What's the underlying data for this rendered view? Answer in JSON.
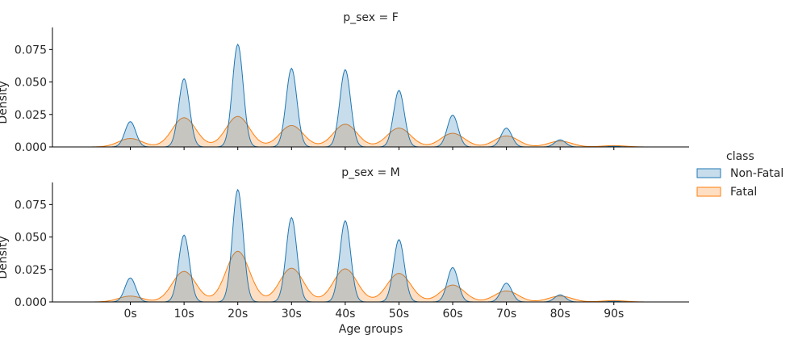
{
  "chart_data": {
    "type": "area",
    "subtype": "kde",
    "facet_titles": [
      "p_sex = F",
      "p_sex = M"
    ],
    "xlabel": "Age groups",
    "ylabel": "Density",
    "categories": [
      "0s",
      "10s",
      "20s",
      "30s",
      "40s",
      "50s",
      "60s",
      "70s",
      "80s",
      "90s"
    ],
    "xlim": [
      -1.45,
      10.4
    ],
    "ylim": [
      0,
      0.092
    ],
    "yticks": [
      "0.000",
      "0.025",
      "0.050",
      "0.075"
    ],
    "ytick_values": [
      0,
      0.025,
      0.05,
      0.075
    ],
    "legend": {
      "title": "class",
      "position": "right"
    },
    "colors": {
      "Non-Fatal": "#1f77b4",
      "Fatal": "#ff7f0e"
    },
    "panels": [
      {
        "facet": "p_sex = F",
        "series": [
          {
            "name": "Non-Fatal",
            "peaks": [
              0.0195,
              0.0525,
              0.079,
              0.0605,
              0.0595,
              0.0435,
              0.0245,
              0.0145,
              0.0055,
              0.0005
            ],
            "width": 0.1
          },
          {
            "name": "Fatal",
            "peaks": [
              0.0065,
              0.0225,
              0.0235,
              0.0165,
              0.0175,
              0.0145,
              0.0105,
              0.0085,
              0.0045,
              0.001
            ],
            "width": 0.22
          }
        ]
      },
      {
        "facet": "p_sex = M",
        "series": [
          {
            "name": "Non-Fatal",
            "peaks": [
              0.0185,
              0.0515,
              0.0865,
              0.065,
              0.0625,
              0.048,
              0.0265,
              0.0145,
              0.0055,
              0.0005
            ],
            "width": 0.1
          },
          {
            "name": "Fatal",
            "peaks": [
              0.0045,
              0.0235,
              0.039,
              0.026,
              0.0255,
              0.022,
              0.013,
              0.0085,
              0.0045,
              0.001
            ],
            "width": 0.22
          }
        ]
      }
    ]
  }
}
